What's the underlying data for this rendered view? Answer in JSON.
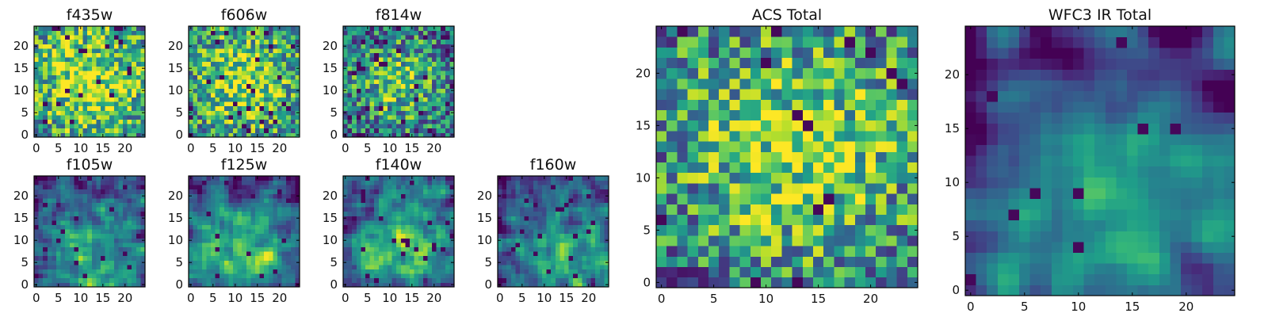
{
  "chart_data": [
    {
      "type": "heatmap",
      "title": "f435w",
      "grid_size": [
        25,
        25
      ],
      "colormap": "viridis",
      "x_ticks": [
        "0",
        "5",
        "10",
        "15",
        "20"
      ],
      "y_ticks": [
        "0",
        "5",
        "10",
        "15",
        "20"
      ],
      "xlim": [
        -0.5,
        24.5
      ],
      "ylim": [
        -0.5,
        24.5
      ],
      "smoothness": 0,
      "bright_center": [
        12,
        12
      ],
      "bias": 0.25,
      "dark_rate": 0.04,
      "seed": 11
    },
    {
      "type": "heatmap",
      "title": "f606w",
      "grid_size": [
        25,
        25
      ],
      "colormap": "viridis",
      "x_ticks": [
        "0",
        "5",
        "10",
        "15",
        "20"
      ],
      "y_ticks": [
        "0",
        "5",
        "10",
        "15",
        "20"
      ],
      "xlim": [
        -0.5,
        24.5
      ],
      "ylim": [
        -0.5,
        24.5
      ],
      "smoothness": 0,
      "bright_center": [
        12,
        12
      ],
      "bias": 0.2,
      "dark_rate": 0.04,
      "seed": 23
    },
    {
      "type": "heatmap",
      "title": "f814w",
      "grid_size": [
        25,
        25
      ],
      "colormap": "viridis",
      "x_ticks": [
        "0",
        "5",
        "10",
        "15",
        "20"
      ],
      "y_ticks": [
        "0",
        "5",
        "10",
        "15",
        "20"
      ],
      "xlim": [
        -0.5,
        24.5
      ],
      "ylim": [
        -0.5,
        24.5
      ],
      "smoothness": 0,
      "bright_center": [
        12,
        12
      ],
      "bias": 0.05,
      "dark_rate": 0.05,
      "seed": 37
    },
    {
      "type": "heatmap",
      "title": "f105w",
      "grid_size": [
        25,
        25
      ],
      "colormap": "viridis",
      "x_ticks": [
        "0",
        "5",
        "10",
        "15",
        "20"
      ],
      "y_ticks": [
        "0",
        "5",
        "10",
        "15",
        "20"
      ],
      "xlim": [
        -0.5,
        24.5
      ],
      "ylim": [
        -0.5,
        24.5
      ],
      "smoothness": 1,
      "bright_center": [
        12,
        7
      ],
      "bias": 0.0,
      "dark_rate": 0.03,
      "seed": 41
    },
    {
      "type": "heatmap",
      "title": "f125w",
      "grid_size": [
        25,
        25
      ],
      "colormap": "viridis",
      "x_ticks": [
        "0",
        "5",
        "10",
        "15",
        "20"
      ],
      "y_ticks": [
        "0",
        "5",
        "10",
        "15",
        "20"
      ],
      "xlim": [
        -0.5,
        24.5
      ],
      "ylim": [
        -0.5,
        24.5
      ],
      "smoothness": 1,
      "bright_center": [
        13,
        6
      ],
      "bias": 0.0,
      "dark_rate": 0.03,
      "seed": 53
    },
    {
      "type": "heatmap",
      "title": "f140w",
      "grid_size": [
        25,
        25
      ],
      "colormap": "viridis",
      "x_ticks": [
        "0",
        "5",
        "10",
        "15",
        "20"
      ],
      "y_ticks": [
        "0",
        "5",
        "10",
        "15",
        "20"
      ],
      "xlim": [
        -0.5,
        24.5
      ],
      "ylim": [
        -0.5,
        24.5
      ],
      "smoothness": 1,
      "bright_center": [
        13,
        9
      ],
      "bias": 0.0,
      "dark_rate": 0.03,
      "seed": 67
    },
    {
      "type": "heatmap",
      "title": "f160w",
      "grid_size": [
        25,
        25
      ],
      "colormap": "viridis",
      "x_ticks": [
        "0",
        "5",
        "10",
        "15",
        "20"
      ],
      "y_ticks": [
        "0",
        "5",
        "10",
        "15",
        "20"
      ],
      "xlim": [
        -0.5,
        24.5
      ],
      "ylim": [
        -0.5,
        24.5
      ],
      "smoothness": 1,
      "bright_center": [
        14,
        6
      ],
      "bias": -0.05,
      "dark_rate": 0.05,
      "seed": 79
    },
    {
      "type": "heatmap",
      "title": "ACS Total",
      "grid_size": [
        25,
        25
      ],
      "colormap": "viridis",
      "x_ticks": [
        "0",
        "5",
        "10",
        "15",
        "20"
      ],
      "y_ticks": [
        "0",
        "5",
        "10",
        "15",
        "20"
      ],
      "xlim": [
        -0.5,
        24.5
      ],
      "ylim": [
        -0.5,
        24.5
      ],
      "smoothness": 0,
      "bright_center": [
        13,
        13
      ],
      "bias": 0.15,
      "dark_rate": 0.03,
      "seed": 97
    },
    {
      "type": "heatmap",
      "title": "WFC3 IR Total",
      "grid_size": [
        25,
        25
      ],
      "colormap": "viridis",
      "x_ticks": [
        "0",
        "5",
        "10",
        "15",
        "20"
      ],
      "y_ticks": [
        "0",
        "5",
        "10",
        "15",
        "20"
      ],
      "xlim": [
        -0.5,
        24.5
      ],
      "ylim": [
        -0.5,
        24.5
      ],
      "smoothness": 2,
      "bright_center": [
        13,
        6
      ],
      "bias": -0.05,
      "dark_rate": 0.02,
      "seed": 113
    }
  ],
  "colors": {
    "viridis": [
      "#440154",
      "#482878",
      "#3e4989",
      "#31688e",
      "#26828e",
      "#1f9e89",
      "#35b779",
      "#6ece58",
      "#b5de2b",
      "#fde725"
    ],
    "axes_edge": "#000000",
    "text": "#111111"
  }
}
